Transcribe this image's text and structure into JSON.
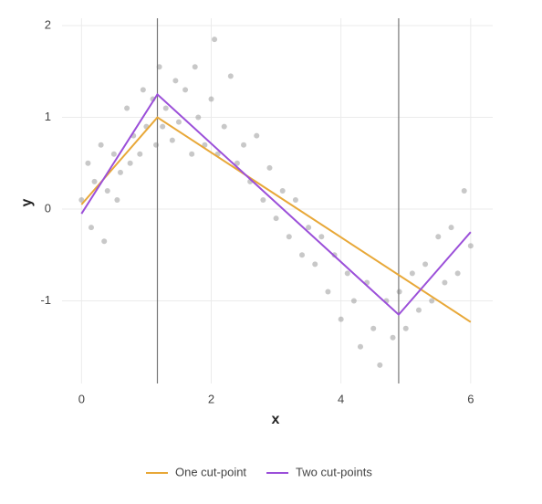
{
  "chart_data": {
    "type": "scatter",
    "x_label": "x",
    "y_label": "y",
    "xlim": [
      -0.3,
      6.34
    ],
    "ylim": [
      -1.9,
      2.08
    ],
    "xticks": [
      0,
      2,
      4,
      6
    ],
    "yticks": [
      -1,
      0,
      1,
      2
    ],
    "grid": true,
    "legend": "bottom",
    "points": {
      "color": "#9a9a9a",
      "x": [
        0.0,
        0.1,
        0.15,
        0.2,
        0.3,
        0.35,
        0.4,
        0.5,
        0.55,
        0.6,
        0.7,
        0.75,
        0.8,
        0.9,
        0.95,
        1.0,
        1.1,
        1.15,
        1.2,
        1.25,
        1.3,
        1.4,
        1.45,
        1.5,
        1.6,
        1.7,
        1.75,
        1.8,
        1.9,
        2.0,
        2.05,
        2.1,
        2.2,
        2.3,
        2.4,
        2.5,
        2.6,
        2.7,
        2.8,
        2.9,
        3.0,
        3.1,
        3.2,
        3.3,
        3.4,
        3.5,
        3.6,
        3.7,
        3.8,
        3.9,
        4.0,
        4.1,
        4.2,
        4.3,
        4.4,
        4.5,
        4.6,
        4.7,
        4.8,
        4.9,
        5.0,
        5.1,
        5.2,
        5.3,
        5.4,
        5.5,
        5.6,
        5.7,
        5.8,
        5.9,
        6.0
      ],
      "y": [
        0.1,
        0.5,
        -0.2,
        0.3,
        0.7,
        -0.35,
        0.2,
        0.6,
        0.1,
        0.4,
        1.1,
        0.5,
        0.8,
        0.6,
        1.3,
        0.9,
        1.2,
        0.7,
        1.55,
        0.9,
        1.1,
        0.75,
        1.4,
        0.95,
        1.3,
        0.6,
        1.55,
        1.0,
        0.7,
        1.2,
        1.85,
        0.6,
        0.9,
        1.45,
        0.5,
        0.7,
        0.3,
        0.8,
        0.1,
        0.45,
        -0.1,
        0.2,
        -0.3,
        0.1,
        -0.5,
        -0.2,
        -0.6,
        -0.3,
        -0.9,
        -0.5,
        -1.2,
        -0.7,
        -1.0,
        -1.5,
        -0.8,
        -1.3,
        -1.7,
        -1.0,
        -1.4,
        -0.9,
        -1.3,
        -0.7,
        -1.1,
        -0.6,
        -1.0,
        -0.3,
        -0.8,
        -0.2,
        -0.7,
        0.2,
        -0.4
      ]
    },
    "vlines": [
      1.17,
      4.89
    ],
    "series": [
      {
        "name": "One cut-point",
        "color": "#e8a838",
        "x": [
          0,
          1.17,
          6
        ],
        "values": [
          0.05,
          1.0,
          -1.23
        ]
      },
      {
        "name": "Two cut-points",
        "color": "#9b4fd9",
        "x": [
          0,
          1.17,
          4.89,
          6
        ],
        "values": [
          -0.05,
          1.25,
          -1.15,
          -0.25
        ]
      }
    ]
  }
}
